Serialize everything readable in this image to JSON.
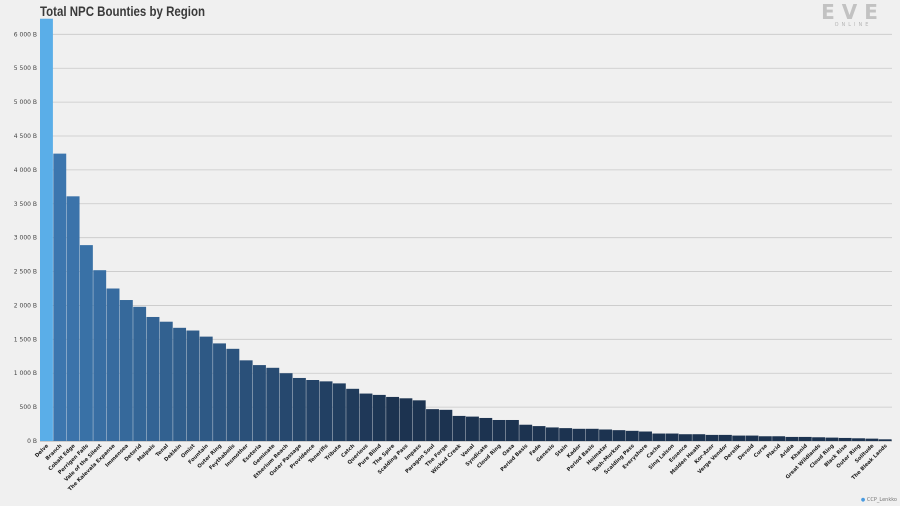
{
  "header": {
    "title": "Total NPC Bounties by Region",
    "logo_text": "EVE",
    "logo_sub": "ONLINE"
  },
  "footer": {
    "credit": "CCP_Lenkko"
  },
  "colors": {
    "bar_highlight": "#5aaee8",
    "bar_dark": "#1c3350",
    "bar_light": "#3c76ae",
    "background": "#f0f0f0"
  },
  "chart_data": {
    "type": "bar",
    "title": "Total NPC Bounties by Region",
    "xlabel": "",
    "ylabel": "",
    "ylim": [
      0,
      6300
    ],
    "yticks": [
      0,
      500,
      1000,
      1500,
      2000,
      2500,
      3000,
      3500,
      4000,
      4500,
      5000,
      5500,
      6000
    ],
    "ytick_labels": [
      "0 B",
      "500 B",
      "1 000 B",
      "1 500 B",
      "2 000 B",
      "2 500 B",
      "3 000 B",
      "3 500 B",
      "4 000 B",
      "4 500 B",
      "5 000 B",
      "5 500 B",
      "6 000 B"
    ],
    "grid": true,
    "categories": [
      "Delve",
      "Branch",
      "Cobalt Edge",
      "Perrigen Falls",
      "Vale of the Silent",
      "The Kalevala Expanse",
      "Immensea",
      "Detorid",
      "Malpais",
      "Tenal",
      "Deklein",
      "Omist",
      "Fountain",
      "Outer Ring",
      "Feythabolis",
      "Insmother",
      "Esoteria",
      "Geminate",
      "Etherium Reach",
      "Outer Passage",
      "Providence",
      "Tenerifis",
      "Tribute",
      "Catch",
      "Querious",
      "Pure Blind",
      "The Spire",
      "Scalding Pass",
      "Impass",
      "Paragon Soul",
      "The Forge",
      "Wicked Creek",
      "Venal",
      "Syndicate",
      "Cloud Ring",
      "Oasa",
      "Period Basis",
      "Fade",
      "Genesis",
      "Stain",
      "Kador",
      "Period Basis",
      "Heimatar",
      "Tash-Murkon",
      "Scalding Pass",
      "Everyshore",
      "Cache",
      "Sinq Laison",
      "Essence",
      "Molden Heath",
      "Kor-Azor",
      "Verge Vendor",
      "Derelik",
      "Devoid",
      "Curse",
      "Placid",
      "Aridia",
      "Khanid",
      "Great Wildlands",
      "Cloud Ring",
      "Black Rise",
      "Outer Ring",
      "Solitude",
      "The Bleak Lands"
    ],
    "values": [
      6230,
      4240,
      3610,
      2890,
      2520,
      2250,
      2080,
      1980,
      1830,
      1760,
      1670,
      1630,
      1540,
      1440,
      1360,
      1190,
      1120,
      1080,
      1000,
      930,
      900,
      880,
      850,
      770,
      700,
      680,
      650,
      630,
      600,
      470,
      460,
      370,
      360,
      340,
      310,
      310,
      240,
      220,
      200,
      190,
      180,
      180,
      170,
      160,
      150,
      140,
      110,
      110,
      100,
      100,
      90,
      90,
      80,
      80,
      70,
      70,
      60,
      60,
      55,
      50,
      45,
      40,
      35,
      25
    ]
  }
}
